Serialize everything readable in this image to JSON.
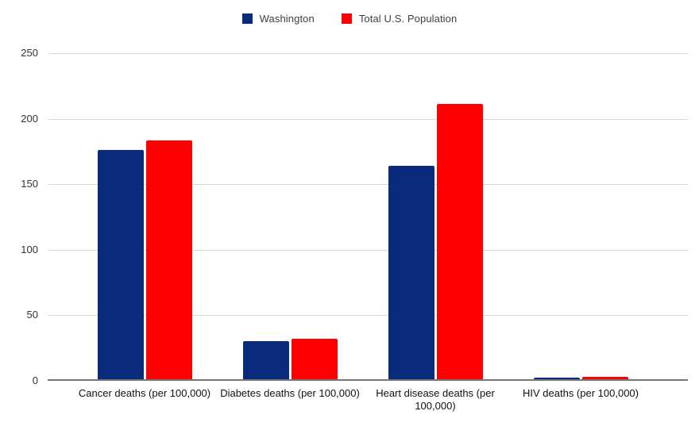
{
  "legend": {
    "items": [
      {
        "label": "Washington",
        "color": "#0a2a7c"
      },
      {
        "label": "Total U.S. Population",
        "color": "#ff0000"
      }
    ]
  },
  "chart_data": {
    "type": "bar",
    "title": "",
    "xlabel": "",
    "ylabel": "",
    "categories": [
      "Cancer deaths (per 100,000)",
      "Diabetes deaths (per 100,000)",
      "Heart disease deaths (per 100,000)",
      "HIV deaths (per 100,000)"
    ],
    "series": [
      {
        "name": "Washington",
        "color": "#0a2a7c",
        "values": [
          175,
          29,
          163,
          1.5
        ]
      },
      {
        "name": "Total U.S. Population",
        "color": "#ff0000",
        "values": [
          182,
          31,
          210,
          2
        ]
      }
    ],
    "ylim": [
      0,
      250
    ],
    "y_ticks": [
      0,
      50,
      100,
      150,
      200,
      250
    ],
    "grid": true,
    "legend_position": "top",
    "gridline_color": "#d9d9d9",
    "axis_color": "#757575",
    "tick_label_color": "#333333",
    "category_label_color": "#111111",
    "background_color": "#ffffff"
  }
}
